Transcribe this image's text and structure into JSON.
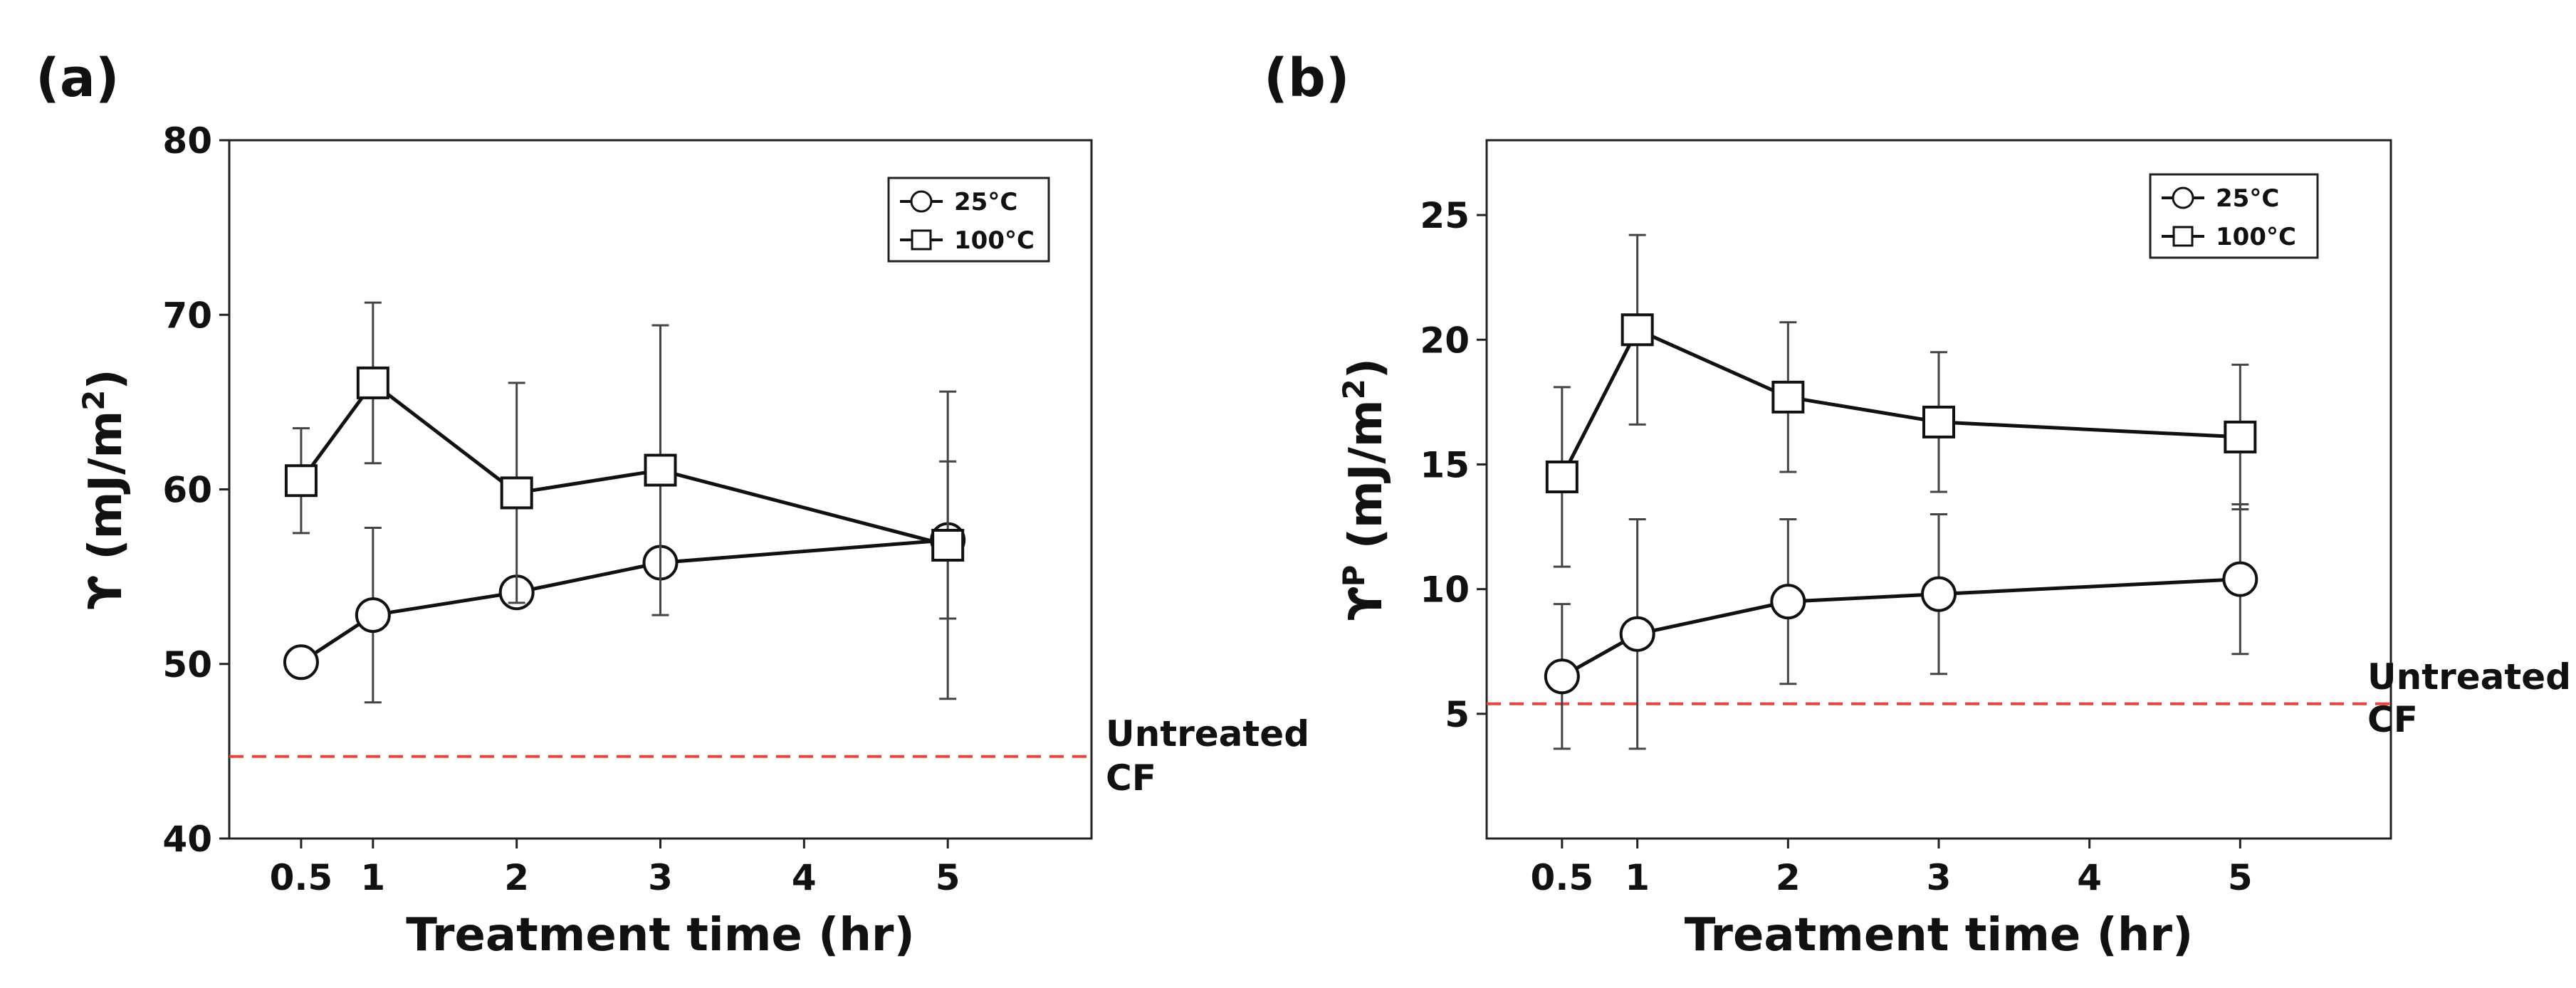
{
  "figure_labels": {
    "a": "(a)",
    "b": "(b)"
  },
  "chart_data": [
    {
      "id": "a",
      "type": "line",
      "title": "",
      "xlabel": "Treatment time (hr)",
      "ylabel": "ϒ (mJ/m²)",
      "ylabel_main": "ϒ (mJ/m",
      "ylabel_sup": "2",
      "ylabel_end": ")",
      "xlim": [
        0,
        6
      ],
      "ylim": [
        40,
        80
      ],
      "x_ticks": [
        0.5,
        1,
        2,
        3,
        4,
        5
      ],
      "x_tick_labels": [
        "0.5",
        "1",
        "2",
        "3",
        "4",
        "5"
      ],
      "y_ticks": [
        40,
        50,
        60,
        70,
        80
      ],
      "y_tick_labels": [
        "40",
        "50",
        "60",
        "70",
        "80"
      ],
      "grid": false,
      "legend_position": "top-right",
      "series": [
        {
          "name": "25°C",
          "marker": "circle",
          "x": [
            0.5,
            1,
            2,
            3,
            5
          ],
          "y": [
            50.1,
            52.8,
            54.1,
            55.8,
            57.1
          ],
          "err": [
            0,
            5.0,
            0,
            0,
            4.5
          ]
        },
        {
          "name": "100°C",
          "marker": "square",
          "x": [
            0.5,
            1,
            2,
            3,
            5
          ],
          "y": [
            60.5,
            66.1,
            59.8,
            61.1,
            56.8
          ],
          "err": [
            3.0,
            4.6,
            6.3,
            8.3,
            8.8
          ]
        }
      ],
      "reference_line": {
        "y": 44.7,
        "color": "#e8453c",
        "label_line1": "Untreated",
        "label_line2": "CF"
      }
    },
    {
      "id": "b",
      "type": "line",
      "title": "",
      "xlabel": "Treatment time (hr)",
      "ylabel": "ϒP (mJ/m²)",
      "ylabel_main": "ϒ",
      "ylabel_sup_p": "P",
      "ylabel_mid": " (mJ/m",
      "ylabel_sup": "2",
      "ylabel_end": ")",
      "xlim": [
        0,
        6
      ],
      "ylim": [
        0,
        28
      ],
      "x_ticks": [
        0.5,
        1,
        2,
        3,
        4,
        5
      ],
      "x_tick_labels": [
        "0.5",
        "1",
        "2",
        "3",
        "4",
        "5"
      ],
      "y_ticks": [
        5,
        10,
        15,
        20,
        25
      ],
      "y_tick_labels": [
        "5",
        "10",
        "15",
        "20",
        "25"
      ],
      "grid": false,
      "legend_position": "top-right",
      "series": [
        {
          "name": "25°C",
          "marker": "circle",
          "x": [
            0.5,
            1,
            2,
            3,
            5
          ],
          "y": [
            6.5,
            8.2,
            9.5,
            9.8,
            10.4
          ],
          "err": [
            2.9,
            4.6,
            3.3,
            3.2,
            3.0
          ]
        },
        {
          "name": "100°C",
          "marker": "square",
          "x": [
            0.5,
            1,
            2,
            3,
            5
          ],
          "y": [
            14.5,
            20.4,
            17.7,
            16.7,
            16.1
          ],
          "err": [
            3.6,
            3.8,
            3.0,
            2.8,
            2.9
          ]
        }
      ],
      "reference_line": {
        "y": 5.4,
        "color": "#e8453c",
        "label_line1": "Untreated",
        "label_line2": "CF"
      }
    }
  ]
}
